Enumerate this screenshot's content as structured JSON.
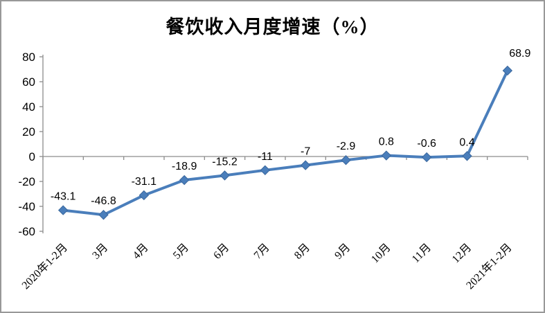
{
  "chart_data": {
    "type": "line",
    "title": "餐饮收入月度增速（%）",
    "categories": [
      "2020年1-2月",
      "3月",
      "4月",
      "5月",
      "6月",
      "7月",
      "8月",
      "9月",
      "10月",
      "11月",
      "12月",
      "2021年1-2月"
    ],
    "values": [
      -43.1,
      -46.8,
      -31.1,
      -18.9,
      -15.2,
      -11,
      -7,
      -2.9,
      0.8,
      -0.6,
      0.4,
      68.9
    ],
    "data_labels": [
      "-43.1",
      "-46.8",
      "-31.1",
      "-18.9",
      "-15.2",
      "-11",
      "-7",
      "-2.9",
      "0.8",
      "-0.6",
      "0.4",
      "68.9"
    ],
    "xlabel": "",
    "ylabel": "",
    "ylim": [
      -60,
      80
    ],
    "y_ticks": [
      80,
      60,
      40,
      20,
      0,
      -20,
      -40,
      -60
    ],
    "grid": "zero-line-only",
    "legend": "none",
    "marker": "diamond",
    "colors": {
      "line": "#4a7ebb",
      "marker_fill": "#4a7ebb",
      "marker_edge": "#3a679c",
      "axis": "#8c8c8c",
      "text": "#000000",
      "background": "#ffffff",
      "frame_border": "#989898"
    }
  }
}
